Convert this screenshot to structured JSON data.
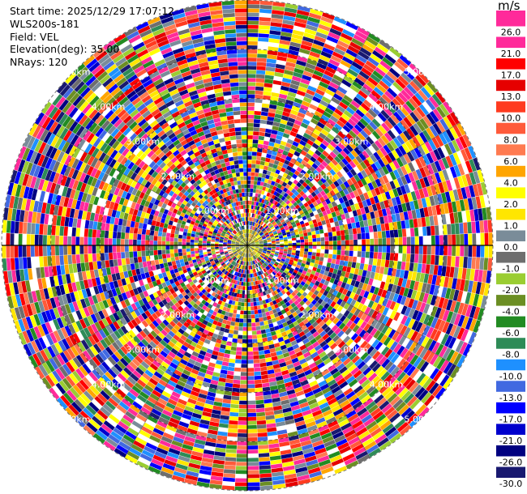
{
  "info": {
    "start_time": "Start time: 2025/12/29 17:07:12",
    "instrument": "WLS200s-181",
    "field": "Field: VEL",
    "elevation": "Elevation(deg): 35.00",
    "nrays": "NRays: 120"
  },
  "chart_data": {
    "type": "heatmap",
    "projection": "polar-ppi",
    "title": "",
    "field": "VEL",
    "units": "m/s",
    "n_rays": 120,
    "range_rings_km": [
      1,
      2,
      3,
      4,
      5
    ],
    "range_ring_labels": [
      "1.00km",
      "2.00km",
      "3.00km",
      "4.00km",
      "5.00km"
    ],
    "max_range_km": 5.0,
    "colorbar": {
      "label": "m/s",
      "ticks": [
        "26.0",
        "21.0",
        "17.0",
        "13.0",
        "10.0",
        "8.0",
        "6.0",
        "4.0",
        "2.0",
        "1.0",
        "0.0",
        "-1.0",
        "-2.0",
        "-4.0",
        "-6.0",
        "-8.0",
        "-10.0",
        "-13.0",
        "-17.0",
        "-21.0",
        "-26.0",
        "-30.0"
      ],
      "colors": [
        "#ff2a9a",
        "#ff2a9a",
        "#ff0000",
        "#e60000",
        "#ff3b20",
        "#ff5a3a",
        "#ff7a50",
        "#ffa500",
        "#ffff00",
        "#ffe600",
        "#7a8c99",
        "#6e6e6e",
        "#9acd32",
        "#6b8e23",
        "#228b22",
        "#2e8b57",
        "#1e90ff",
        "#4169e1",
        "#0000ff",
        "#0000cd",
        "#000080",
        "#191970"
      ]
    }
  }
}
